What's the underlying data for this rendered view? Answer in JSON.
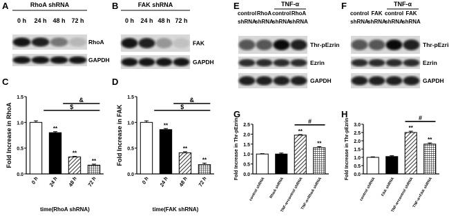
{
  "blots": [
    {
      "letter": "A",
      "title": "RhoA shRNA",
      "lanes": [
        [
          "0 h"
        ],
        [
          "24 h"
        ],
        [
          "48 h"
        ],
        [
          "72 h"
        ]
      ],
      "rows": [
        "RhoA",
        "GAPDH"
      ]
    },
    {
      "letter": "B",
      "title": "FAK shRNA",
      "lanes": [
        [
          "0 h"
        ],
        [
          "24 h"
        ],
        [
          "48 h"
        ],
        [
          "72 h"
        ]
      ],
      "rows": [
        "FAK",
        "GAPDH"
      ]
    },
    {
      "letter": "E",
      "group": "TNF-α",
      "lanes": [
        [
          "control",
          "shRNA"
        ],
        [
          "RhoA",
          "shRNA"
        ],
        [
          "control",
          "shRNA"
        ],
        [
          "RhoA",
          "shRNA"
        ]
      ],
      "rows": [
        "Thr-pEzrin",
        "Ezrin",
        "GAPDH"
      ]
    },
    {
      "letter": "F",
      "group": "TNF-α",
      "lanes": [
        [
          "control",
          "shRNA"
        ],
        [
          "FAK",
          "shRNA"
        ],
        [
          "control",
          "shRNA"
        ],
        [
          "FAK",
          "shRNA"
        ]
      ],
      "rows": [
        "Thr-pEzrin",
        "Ezrin",
        "GAPDH"
      ]
    }
  ],
  "chart_data": [
    {
      "type": "bar",
      "letter": "C",
      "ylabel": "Fold Increase in RhoA",
      "xlabel": "time(RhoA shRNA)",
      "categories": [
        "0 h",
        "24 h",
        "48 h",
        "72 h"
      ],
      "values": [
        1.0,
        0.8,
        0.33,
        0.17
      ],
      "errors": [
        0.03,
        0.02,
        0.01,
        0.02
      ],
      "star_labels": [
        null,
        "**",
        "**",
        "**"
      ],
      "brackets": [
        "$",
        "&"
      ],
      "fills": [
        "white",
        "black",
        "hatch",
        "grid"
      ],
      "ylim": [
        0,
        1.5
      ],
      "yticks": [
        {
          "value": 0,
          "label": "0.0"
        },
        {
          "value": 0.5,
          "label": "0.5"
        },
        {
          "value": 1,
          "label": "1.0"
        },
        {
          "value": 1.5,
          "label": "1.5"
        }
      ]
    },
    {
      "type": "bar",
      "letter": "D",
      "ylabel": "Fold Increase in FAK",
      "xlabel": "time(FAK shRNA)",
      "categories": [
        "0 h",
        "24 h",
        "48 h",
        "72 h"
      ],
      "values": [
        1.0,
        0.86,
        0.41,
        0.18
      ],
      "errors": [
        0.03,
        0.02,
        0.02,
        0.03
      ],
      "star_labels": [
        null,
        "**",
        "**",
        "**"
      ],
      "brackets": [
        "$",
        "&"
      ],
      "fills": [
        "white",
        "black",
        "hatch",
        "grid"
      ],
      "ylim": [
        0,
        1.5
      ],
      "yticks": [
        {
          "value": 0,
          "label": "0.0"
        },
        {
          "value": 0.5,
          "label": "0.5"
        },
        {
          "value": 1,
          "label": "1.0"
        },
        {
          "value": 1.5,
          "label": "1.5"
        }
      ]
    },
    {
      "type": "bar",
      "letter": "G",
      "ylabel": "Fold Increase in Thr-pEzrin",
      "categories": [
        "control shRNA",
        "RhoA shRNA",
        "TNF-α+control shRNA",
        "TNF-α+RhoA shRNA"
      ],
      "values": [
        1.0,
        1.0,
        1.95,
        1.32
      ],
      "errors": [
        0.02,
        0.05,
        0.03,
        0.05
      ],
      "star_labels": [
        null,
        null,
        "**",
        "**"
      ],
      "brackets": [
        "#"
      ],
      "fills": [
        "white",
        "black",
        "hatch",
        "grid"
      ],
      "ylim": [
        0,
        2.5
      ],
      "yticks": [
        {
          "value": 0,
          "label": "0.0"
        },
        {
          "value": 0.5,
          "label": "0.5"
        },
        {
          "value": 1,
          "label": "1.0"
        },
        {
          "value": 1.5,
          "label": "1.5"
        },
        {
          "value": 2,
          "label": "2.0"
        },
        {
          "value": 2.5,
          "label": "2.5"
        }
      ]
    },
    {
      "type": "bar",
      "letter": "H",
      "ylabel": "Fold Increase in Thr-pEzrin",
      "categories": [
        "control shRNA",
        "FAK shRNA",
        "TNF-α+control shRNA",
        "TNF-α+FAK shRNA"
      ],
      "values": [
        1.0,
        1.05,
        2.5,
        1.8
      ],
      "errors": [
        0.03,
        0.05,
        0.08,
        0.07
      ],
      "star_labels": [
        null,
        null,
        "**",
        "**"
      ],
      "brackets": [
        "#"
      ],
      "fills": [
        "white",
        "black",
        "hatch",
        "grid"
      ],
      "ylim": [
        0,
        3
      ],
      "yticks": [
        {
          "value": 0,
          "label": "0.0"
        },
        {
          "value": 0.5,
          "label": "0.5"
        },
        {
          "value": 1,
          "label": "1.0"
        },
        {
          "value": 1.5,
          "label": "1.5"
        },
        {
          "value": 2,
          "label": "2.0"
        },
        {
          "value": 2.5,
          "label": "2.5"
        },
        {
          "value": 3,
          "label": "3.0"
        }
      ]
    }
  ]
}
